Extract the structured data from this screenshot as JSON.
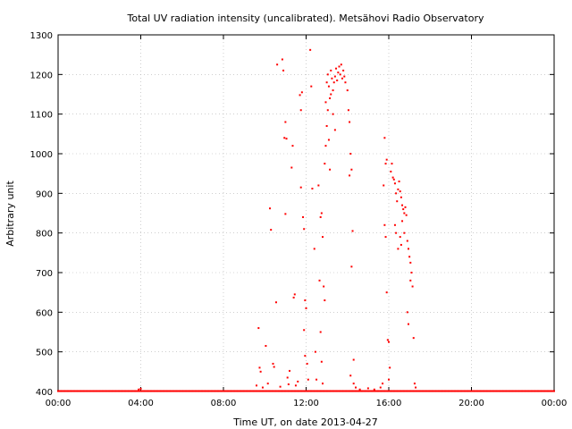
{
  "chart_data": {
    "type": "scatter",
    "title": "Total UV radiation intensity (uncalibrated). Metsähovi Radio Observatory",
    "xlabel": "Time UT, on date 2013-04-27",
    "ylabel": "Arbitrary unit",
    "xlim": [
      0,
      24
    ],
    "ylim": [
      400,
      1300
    ],
    "x_ticks": [
      0,
      4,
      8,
      12,
      16,
      20,
      24
    ],
    "x_tick_labels": [
      "00:00",
      "04:00",
      "08:00",
      "12:00",
      "16:00",
      "20:00",
      "00:00"
    ],
    "y_ticks": [
      400,
      500,
      600,
      700,
      800,
      900,
      1000,
      1100,
      1200,
      1300
    ],
    "grid": true,
    "series_color": "#ff0000",
    "points": [
      [
        3.9,
        405
      ],
      [
        4.0,
        407
      ],
      [
        9.6,
        415
      ],
      [
        9.7,
        560
      ],
      [
        9.75,
        460
      ],
      [
        9.8,
        450
      ],
      [
        9.9,
        410
      ],
      [
        10.05,
        515
      ],
      [
        10.15,
        420
      ],
      [
        10.25,
        862
      ],
      [
        10.3,
        808
      ],
      [
        10.4,
        470
      ],
      [
        10.45,
        462
      ],
      [
        10.55,
        625
      ],
      [
        10.6,
        1225
      ],
      [
        10.75,
        412
      ],
      [
        10.85,
        1238
      ],
      [
        10.9,
        1210
      ],
      [
        10.95,
        1040
      ],
      [
        11.0,
        1080
      ],
      [
        11.05,
        1038
      ],
      [
        11.0,
        848
      ],
      [
        11.1,
        435
      ],
      [
        11.15,
        418
      ],
      [
        11.2,
        452
      ],
      [
        11.3,
        965
      ],
      [
        11.35,
        1020
      ],
      [
        11.4,
        637
      ],
      [
        11.45,
        645
      ],
      [
        11.5,
        415
      ],
      [
        11.6,
        425
      ],
      [
        11.7,
        1148
      ],
      [
        11.75,
        1110
      ],
      [
        11.8,
        1155
      ],
      [
        11.75,
        915
      ],
      [
        11.85,
        840
      ],
      [
        11.9,
        810
      ],
      [
        11.95,
        630
      ],
      [
        12.0,
        610
      ],
      [
        11.9,
        555
      ],
      [
        11.95,
        490
      ],
      [
        12.05,
        470
      ],
      [
        12.1,
        430
      ],
      [
        12.2,
        1262
      ],
      [
        12.25,
        1170
      ],
      [
        12.3,
        912
      ],
      [
        12.4,
        760
      ],
      [
        12.45,
        500
      ],
      [
        12.5,
        430
      ],
      [
        12.6,
        920
      ],
      [
        12.7,
        840
      ],
      [
        12.75,
        850
      ],
      [
        12.8,
        790
      ],
      [
        12.65,
        680
      ],
      [
        12.7,
        550
      ],
      [
        12.75,
        475
      ],
      [
        12.8,
        420
      ],
      [
        12.85,
        665
      ],
      [
        12.9,
        630
      ],
      [
        12.95,
        1130
      ],
      [
        13.0,
        1180
      ],
      [
        13.05,
        1200
      ],
      [
        13.1,
        1170
      ],
      [
        13.15,
        1140
      ],
      [
        13.2,
        1210
      ],
      [
        13.25,
        1190
      ],
      [
        13.3,
        1160
      ],
      [
        13.35,
        1180
      ],
      [
        13.4,
        1195
      ],
      [
        13.45,
        1215
      ],
      [
        13.5,
        1185
      ],
      [
        13.55,
        1205
      ],
      [
        13.6,
        1220
      ],
      [
        13.65,
        1200
      ],
      [
        13.7,
        1225
      ],
      [
        13.75,
        1190
      ],
      [
        13.8,
        1210
      ],
      [
        13.85,
        1195
      ],
      [
        13.9,
        1180
      ],
      [
        14.0,
        1160
      ],
      [
        13.05,
        1110
      ],
      [
        13.0,
        1070
      ],
      [
        12.95,
        1020
      ],
      [
        13.1,
        1035
      ],
      [
        13.15,
        960
      ],
      [
        12.9,
        975
      ],
      [
        13.2,
        1150
      ],
      [
        13.3,
        1100
      ],
      [
        13.4,
        1060
      ],
      [
        14.05,
        1110
      ],
      [
        14.1,
        1080
      ],
      [
        14.15,
        1000
      ],
      [
        14.2,
        960
      ],
      [
        14.1,
        945
      ],
      [
        14.25,
        805
      ],
      [
        14.2,
        715
      ],
      [
        14.3,
        480
      ],
      [
        14.15,
        440
      ],
      [
        14.3,
        420
      ],
      [
        14.4,
        410
      ],
      [
        14.6,
        405
      ],
      [
        15.0,
        408
      ],
      [
        15.3,
        405
      ],
      [
        15.6,
        410
      ],
      [
        15.7,
        420
      ],
      [
        15.8,
        1040
      ],
      [
        15.85,
        975
      ],
      [
        15.9,
        985
      ],
      [
        15.75,
        920
      ],
      [
        15.8,
        820
      ],
      [
        15.85,
        790
      ],
      [
        15.9,
        650
      ],
      [
        15.95,
        530
      ],
      [
        16.0,
        525
      ],
      [
        16.05,
        460
      ],
      [
        16.0,
        430
      ],
      [
        16.1,
        955
      ],
      [
        16.15,
        975
      ],
      [
        16.2,
        940
      ],
      [
        16.25,
        935
      ],
      [
        16.3,
        925
      ],
      [
        16.35,
        900
      ],
      [
        16.4,
        880
      ],
      [
        16.45,
        910
      ],
      [
        16.5,
        930
      ],
      [
        16.55,
        905
      ],
      [
        16.6,
        890
      ],
      [
        16.65,
        870
      ],
      [
        16.7,
        860
      ],
      [
        16.75,
        850
      ],
      [
        16.8,
        865
      ],
      [
        16.85,
        845
      ],
      [
        16.9,
        780
      ],
      [
        16.95,
        760
      ],
      [
        17.0,
        740
      ],
      [
        17.05,
        725
      ],
      [
        17.1,
        700
      ],
      [
        16.9,
        600
      ],
      [
        16.95,
        570
      ],
      [
        17.05,
        680
      ],
      [
        17.15,
        665
      ],
      [
        17.2,
        535
      ],
      [
        17.25,
        420
      ],
      [
        17.3,
        410
      ],
      [
        16.3,
        820
      ],
      [
        16.35,
        800
      ],
      [
        16.45,
        760
      ],
      [
        16.55,
        790
      ],
      [
        16.65,
        830
      ],
      [
        16.75,
        800
      ],
      [
        16.6,
        770
      ]
    ],
    "baseline": {
      "value": 401,
      "x_from": 0,
      "x_to": 24
    }
  }
}
